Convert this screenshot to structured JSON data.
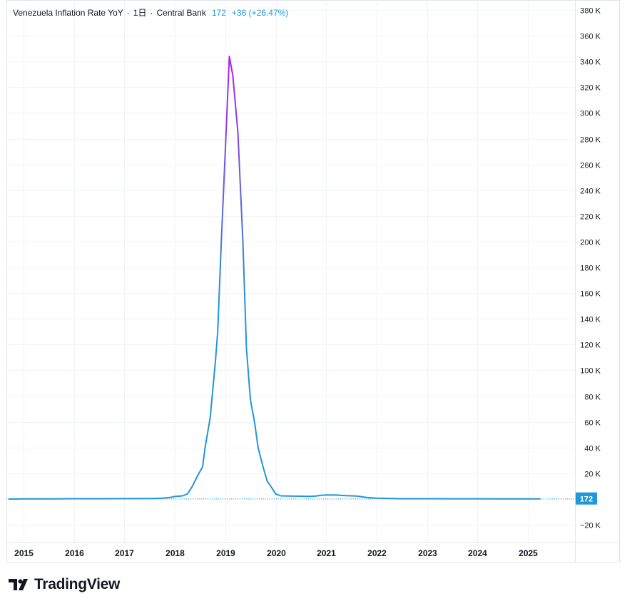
{
  "legend": {
    "title": "Venezuela Inflation Rate YoY",
    "interval": "1日",
    "source": "Central Bank",
    "last_value": "172",
    "change": "+36 (+26.47%)"
  },
  "price_label": "172",
  "brand": "TradingView",
  "colors": {
    "line_low": "#2196d9",
    "line_high": "#b21cf0",
    "price_badge": "#2196d9",
    "grid": "#f0f3fa",
    "axis_border": "#e0e3eb"
  },
  "chart_data": {
    "type": "line",
    "title": "Venezuela Inflation Rate YoY",
    "xlabel": "",
    "ylabel": "",
    "ylim": [
      -30000,
      385000
    ],
    "xlim": [
      2014.7,
      2025.95
    ],
    "y_ticks": [
      -20000,
      20000,
      40000,
      60000,
      80000,
      100000,
      120000,
      140000,
      160000,
      180000,
      200000,
      220000,
      240000,
      260000,
      280000,
      300000,
      320000,
      340000,
      360000,
      380000
    ],
    "y_tick_labels": [
      "−20 K",
      "20 K",
      "40 K",
      "60 K",
      "80 K",
      "100 K",
      "120 K",
      "140 K",
      "160 K",
      "180 K",
      "200 K",
      "220 K",
      "240 K",
      "260 K",
      "280 K",
      "300 K",
      "320 K",
      "340 K",
      "360 K",
      "380 K"
    ],
    "x_ticks": [
      2015,
      2016,
      2017,
      2018,
      2019,
      2020,
      2021,
      2022,
      2023,
      2024,
      2025
    ],
    "x_tick_labels": [
      "2015",
      "2016",
      "2017",
      "2018",
      "2019",
      "2020",
      "2021",
      "2022",
      "2023",
      "2024",
      "2025"
    ],
    "grid": true,
    "series": [
      {
        "x": [
          2014.7,
          2015.0,
          2015.5,
          2016.0,
          2016.5,
          2017.0,
          2017.5,
          2017.75,
          2017.9,
          2018.0,
          2018.15,
          2018.25,
          2018.35,
          2018.45,
          2018.55,
          2018.6,
          2018.7,
          2018.8,
          2018.85,
          2018.92,
          2019.0,
          2019.08,
          2019.15,
          2019.25,
          2019.35,
          2019.42,
          2019.5,
          2019.58,
          2019.65,
          2019.75,
          2019.83,
          2019.92,
          2020.0,
          2020.1,
          2020.25,
          2020.5,
          2020.65,
          2020.8,
          2020.9,
          2021.0,
          2021.2,
          2021.4,
          2021.6,
          2021.8,
          2022.0,
          2022.5,
          2023.0,
          2023.5,
          2024.0,
          2024.5,
          2025.0,
          2025.25
        ],
        "y": [
          0,
          100,
          180,
          250,
          300,
          350,
          420,
          600,
          1200,
          2000,
          2500,
          4000,
          10000,
          18000,
          25000,
          40000,
          63000,
          105000,
          130000,
          198000,
          270000,
          344000,
          329000,
          285000,
          200000,
          117000,
          77000,
          60000,
          40000,
          25000,
          14000,
          9000,
          4000,
          2500,
          2300,
          2200,
          2100,
          2400,
          2900,
          3200,
          3100,
          2600,
          2300,
          1300,
          700,
          300,
          250,
          220,
          200,
          180,
          170,
          172
        ]
      }
    ]
  }
}
